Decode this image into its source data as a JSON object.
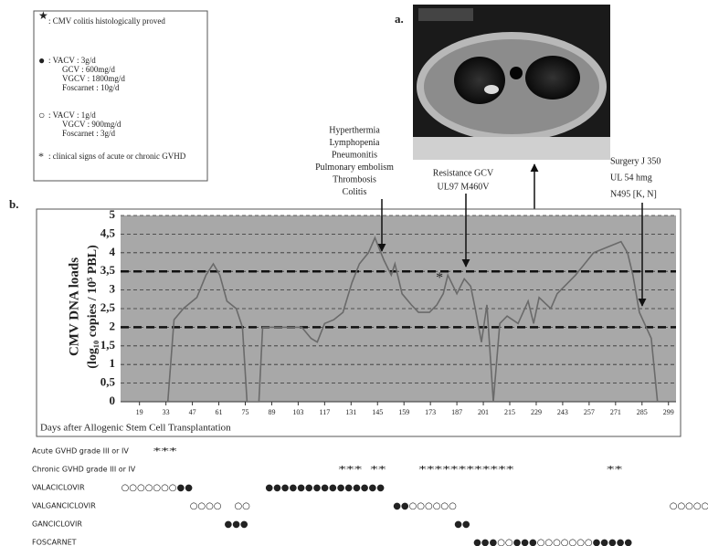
{
  "legend_box": {
    "items": [
      {
        "symbol": "★",
        "lines": [
          ": CMV colitis histologically proved"
        ]
      },
      {
        "symbol": "●",
        "lines": [
          ": VACV : 3g/d",
          "GCV : 600mg/d",
          "VGCV : 1800mg/d",
          "Foscarnet : 10g/d"
        ]
      },
      {
        "symbol": "○",
        "lines": [
          ": VACV : 1g/d",
          "VGCV : 900mg/d",
          "Foscarnet : 3g/d"
        ]
      },
      {
        "symbol": "*",
        "lines": [
          ": clinical signs of acute or chronic GVHD"
        ]
      }
    ]
  },
  "panel_a": {
    "label": "a."
  },
  "chart_data": {
    "type": "line",
    "panel_label": "b.",
    "y_label": [
      "CMV DNA loads",
      "(log₁₀ copies / 10⁵ PBL)"
    ],
    "x_label": "Days after Allogenic Stem Cell Transplantation",
    "x": [
      34.0,
      37.3,
      42.2,
      49.4,
      54.2,
      58.1,
      61.5,
      65.3,
      70.2,
      73.5,
      75.9,
      82.2,
      84.2,
      104.9,
      109.8,
      113.1,
      117.0,
      121.8,
      126.7,
      131.5,
      135.4,
      140.2,
      143.6,
      148.4,
      152.3,
      154.2,
      158.0,
      162.9,
      166.7,
      172.5,
      176.4,
      179.8,
      182.2,
      187.0,
      190.9,
      194.3,
      196.7,
      200.0,
      202.9,
      206.3,
      209.7,
      213.6,
      219.4,
      224.7,
      227.6,
      230.5,
      236.7,
      240.1,
      249.8,
      259.4,
      269.1,
      273.9,
      277.3,
      280.2,
      283.6,
      289.9,
      293.2
    ],
    "values": [
      0,
      2.2,
      2.5,
      2.8,
      3.4,
      3.7,
      3.4,
      2.7,
      2.5,
      2.0,
      0,
      0,
      2.0,
      2.0,
      1.7,
      1.6,
      2.1,
      2.2,
      2.4,
      3.2,
      3.7,
      4.0,
      4.4,
      3.8,
      3.4,
      3.7,
      2.9,
      2.6,
      2.4,
      2.4,
      2.6,
      2.9,
      3.4,
      2.9,
      3.3,
      3.1,
      2.5,
      1.6,
      2.6,
      0,
      2.1,
      2.3,
      2.1,
      2.7,
      2.1,
      2.8,
      2.5,
      2.9,
      3.4,
      4.0,
      4.2,
      4.3,
      4.0,
      3.4,
      2.4,
      1.7,
      0
    ],
    "color": "#6a6a6a",
    "xlim": [
      9,
      303
    ],
    "ylim": [
      0,
      5
    ],
    "xticks": [
      19,
      33,
      47,
      61,
      75,
      89,
      103,
      117,
      131,
      145,
      159,
      173,
      187,
      201,
      215,
      229,
      243,
      257,
      271,
      285,
      299
    ],
    "yticks": [
      0,
      {
        "value": 0.5,
        "label": "0,5"
      },
      1,
      {
        "value": 1.5,
        "label": "1,5"
      },
      2,
      {
        "value": 2.5,
        "label": "2,5"
      },
      3,
      {
        "value": 3.5,
        "label": "3,5"
      },
      4,
      {
        "value": 4.5,
        "label": "4,5"
      },
      5
    ],
    "grid": true,
    "thresholds": [
      2,
      3.5
    ],
    "star": {
      "x": 177.8,
      "value": 3.3,
      "label": "*"
    },
    "annotations": [
      {
        "lines": [
          "Hyperthermia",
          "Lymphopenia",
          "Pneumonitis",
          "Pulmonary embolism",
          "Thrombosis",
          "Colitis"
        ]
      },
      {
        "lines": [
          "Resistance GCV",
          "UL97 M460V"
        ]
      },
      {
        "lines": [
          "Surgery J 350",
          "UL 54 hmg",
          "N495 [K, N]"
        ]
      }
    ],
    "treatments": [
      {
        "name": "Acute GVHD grade III or IV",
        "segments": [
          {
            "start": 26.2,
            "symbols": "***"
          }
        ]
      },
      {
        "name": "Chronic GVHD grade III or IV",
        "segments": [
          {
            "start": 124.2,
            "symbols": "***"
          },
          {
            "start": 141.1,
            "symbols": "**"
          },
          {
            "start": 166.7,
            "symbols": "************"
          },
          {
            "start": 266.2,
            "symbols": "**"
          }
        ]
      },
      {
        "name": "VALACICLOVIR",
        "segments": [
          {
            "start": 9.3,
            "symbols": "○○○○○○○●●"
          },
          {
            "start": 85.6,
            "symbols": "●●●●●●●●●●●●●●●"
          }
        ]
      },
      {
        "name": "VALGANCICLOVIR",
        "segments": [
          {
            "start": 45.6,
            "symbols": "○○○○"
          },
          {
            "start": 69.2,
            "symbols": "○○"
          },
          {
            "start": 153.2,
            "symbols": "●●○○○○○○"
          },
          {
            "start": 299.5,
            "symbols": "○○○○○"
          }
        ]
      },
      {
        "name": "GANCICLOVIR",
        "segments": [
          {
            "start": 63.9,
            "symbols": "●●●"
          },
          {
            "start": 185.6,
            "symbols": "●●"
          }
        ]
      },
      {
        "name": "FOSCARNET",
        "segments": [
          {
            "start": 195.7,
            "symbols": "●●●○○●●●○○○○○○○●●●●●"
          }
        ]
      }
    ]
  }
}
